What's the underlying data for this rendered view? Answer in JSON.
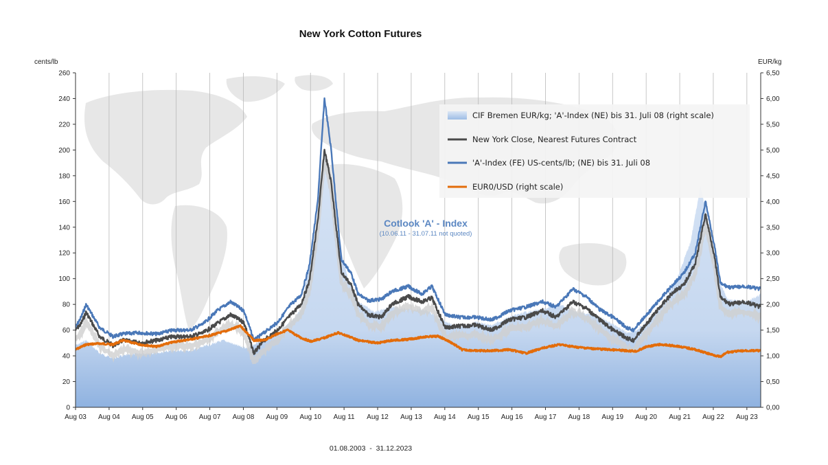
{
  "chart_data": {
    "type": "line",
    "title": "New York Cotton Futures",
    "left_unit": "cents/lb",
    "right_unit": "EUR/kg",
    "date_range": "01.08.2003  -  31.12.2023",
    "annotation": {
      "title": "Cotlook 'A' - Index",
      "subtitle": "(10.06.11 - 31.07.11 not quoted)"
    },
    "x_labels": [
      "Aug 03",
      "Aug 04",
      "Aug 05",
      "Aug 06",
      "Aug 07",
      "Aug 08",
      "Aug 09",
      "Aug 10",
      "Aug 11",
      "Aug 12",
      "Aug 13",
      "Aug 14",
      "Aug 15",
      "Aug 16",
      "Aug 17",
      "Aug 18",
      "Aug 19",
      "Aug 20",
      "Aug 21",
      "Aug 22",
      "Aug 23"
    ],
    "x_range": [
      "2003-08",
      "2023-12"
    ],
    "y_left": {
      "min": 0,
      "max": 260,
      "step": 20,
      "tick_labels": [
        "0",
        "20",
        "40",
        "60",
        "80",
        "100",
        "120",
        "140",
        "160",
        "180",
        "200",
        "220",
        "240",
        "260"
      ]
    },
    "y_right": {
      "min": 0,
      "max": 6.5,
      "step": 0.5,
      "tick_labels": [
        "0,00",
        "0,50",
        "1,00",
        "1,50",
        "2,00",
        "2,50",
        "3,00",
        "3,50",
        "4,00",
        "4,50",
        "5,00",
        "5,50",
        "6,00",
        "6,50"
      ]
    },
    "grid": {
      "vertical": true,
      "horizontal": false
    },
    "legend": {
      "placement": "top-right"
    },
    "series": [
      {
        "name": "CIF Bremen EUR/kg; 'A'-Index (NE) bis 31. Juli 08 (right scale)",
        "type": "area",
        "axis": "right",
        "color": "#a9c4e8",
        "x": [
          2003.58,
          2003.9,
          2004.3,
          2004.7,
          2005.0,
          2005.5,
          2006.0,
          2006.5,
          2007.0,
          2007.5,
          2008.0,
          2008.4,
          2008.7,
          2009.0,
          2009.6,
          2010.0,
          2010.3,
          2010.5,
          2010.8,
          2011.0,
          2011.3,
          2011.7,
          2012.0,
          2012.5,
          2013.0,
          2013.5,
          2014.0,
          2014.5,
          2015.0,
          2015.5,
          2016.0,
          2016.5,
          2017.0,
          2017.5,
          2018.0,
          2018.5,
          2019.0,
          2019.5,
          2020.0,
          2020.3,
          2020.5,
          2021.0,
          2021.5,
          2021.9,
          2022.2,
          2022.4,
          2022.6,
          2022.8,
          2023.0,
          2023.5,
          2023.9,
          2023.99
        ],
        "y": [
          1.2,
          1.3,
          1.05,
          0.95,
          1.0,
          1.05,
          1.05,
          1.1,
          1.1,
          1.2,
          1.3,
          1.2,
          1.15,
          1.25,
          1.45,
          1.65,
          1.9,
          2.6,
          3.5,
          5.0,
          3.6,
          2.5,
          2.05,
          1.85,
          1.95,
          1.9,
          1.9,
          1.7,
          1.55,
          1.65,
          1.6,
          1.75,
          1.85,
          1.9,
          2.0,
          1.85,
          1.8,
          1.65,
          1.45,
          1.5,
          1.6,
          1.9,
          2.5,
          3.2,
          4.3,
          3.7,
          2.8,
          2.4,
          2.1,
          2.05,
          2.15,
          2.2
        ]
      },
      {
        "name": "New York Close, Nearest Futures Contract",
        "type": "line",
        "axis": "left",
        "color": "#4a4a4a",
        "x": [
          2003.58,
          2003.75,
          2003.9,
          2004.3,
          2004.7,
          2005.0,
          2005.5,
          2006.0,
          2006.5,
          2007.0,
          2007.4,
          2007.8,
          2008.2,
          2008.6,
          2008.9,
          2009.2,
          2009.6,
          2010.0,
          2010.3,
          2010.55,
          2010.8,
          2011.0,
          2011.2,
          2011.5,
          2011.8,
          2012.0,
          2012.3,
          2012.7,
          2013.0,
          2013.5,
          2013.9,
          2014.2,
          2014.6,
          2015.0,
          2015.5,
          2016.0,
          2016.5,
          2017.0,
          2017.5,
          2017.9,
          2018.4,
          2018.8,
          2019.2,
          2019.6,
          2020.0,
          2020.2,
          2020.6,
          2021.0,
          2021.4,
          2021.7,
          2022.05,
          2022.35,
          2022.6,
          2022.8,
          2023.1,
          2023.5,
          2023.99
        ],
        "y": [
          60,
          65,
          74,
          55,
          48,
          52,
          50,
          52,
          55,
          55,
          58,
          65,
          72,
          66,
          42,
          52,
          60,
          72,
          80,
          98,
          145,
          200,
          175,
          105,
          95,
          80,
          72,
          70,
          80,
          86,
          82,
          85,
          62,
          63,
          64,
          60,
          68,
          70,
          75,
          70,
          82,
          77,
          68,
          60,
          54,
          52,
          65,
          78,
          90,
          95,
          112,
          150,
          120,
          85,
          80,
          82,
          78
        ]
      },
      {
        "name": "'A'-Index (FE) US-cents/lb;  (NE) bis 31. Juli 08",
        "type": "line",
        "axis": "left",
        "color": "#4a78b8",
        "x": [
          2003.58,
          2003.75,
          2003.9,
          2004.3,
          2004.7,
          2005.0,
          2005.5,
          2006.0,
          2006.5,
          2007.0,
          2007.4,
          2007.8,
          2008.2,
          2008.6,
          2008.9,
          2009.2,
          2009.6,
          2010.0,
          2010.3,
          2010.55,
          2010.8,
          2011.0,
          2011.2,
          2011.5,
          2011.8,
          2012.0,
          2012.3,
          2012.7,
          2013.0,
          2013.5,
          2013.9,
          2014.2,
          2014.6,
          2015.0,
          2015.5,
          2016.0,
          2016.5,
          2017.0,
          2017.5,
          2017.9,
          2018.4,
          2018.8,
          2019.2,
          2019.6,
          2020.0,
          2020.2,
          2020.6,
          2021.0,
          2021.4,
          2021.7,
          2022.05,
          2022.35,
          2022.6,
          2022.8,
          2023.1,
          2023.5,
          2023.99
        ],
        "y": [
          62,
          70,
          80,
          62,
          55,
          57,
          58,
          57,
          60,
          60,
          65,
          75,
          82,
          75,
          52,
          58,
          66,
          80,
          87,
          110,
          160,
          240,
          200,
          115,
          104,
          88,
          83,
          84,
          90,
          94,
          88,
          94,
          72,
          70,
          70,
          68,
          75,
          78,
          82,
          78,
          92,
          86,
          76,
          70,
          62,
          60,
          72,
          84,
          96,
          104,
          120,
          160,
          128,
          96,
          93,
          94,
          92
        ]
      },
      {
        "name": "EUR0/USD (right scale)",
        "type": "line",
        "axis": "right",
        "color": "#e36c0a",
        "x": [
          2003.58,
          2003.9,
          2004.3,
          2004.7,
          2005.0,
          2005.5,
          2006.0,
          2006.5,
          2007.0,
          2007.5,
          2008.0,
          2008.5,
          2008.9,
          2009.2,
          2009.6,
          2009.9,
          2010.3,
          2010.6,
          2011.0,
          2011.4,
          2011.8,
          2012.0,
          2012.6,
          2013.0,
          2013.5,
          2014.0,
          2014.4,
          2014.8,
          2015.1,
          2015.5,
          2016.0,
          2016.5,
          2017.0,
          2017.5,
          2018.0,
          2018.5,
          2019.0,
          2019.5,
          2020.0,
          2020.3,
          2020.6,
          2021.0,
          2021.5,
          2022.0,
          2022.4,
          2022.8,
          2023.0,
          2023.5,
          2023.99
        ],
        "y": [
          1.12,
          1.22,
          1.24,
          1.22,
          1.3,
          1.22,
          1.18,
          1.27,
          1.32,
          1.38,
          1.47,
          1.58,
          1.3,
          1.3,
          1.43,
          1.5,
          1.35,
          1.28,
          1.35,
          1.45,
          1.36,
          1.3,
          1.25,
          1.3,
          1.32,
          1.37,
          1.38,
          1.25,
          1.12,
          1.1,
          1.1,
          1.12,
          1.05,
          1.15,
          1.22,
          1.17,
          1.14,
          1.12,
          1.1,
          1.09,
          1.18,
          1.22,
          1.19,
          1.13,
          1.05,
          0.98,
          1.07,
          1.1,
          1.1
        ]
      }
    ]
  }
}
